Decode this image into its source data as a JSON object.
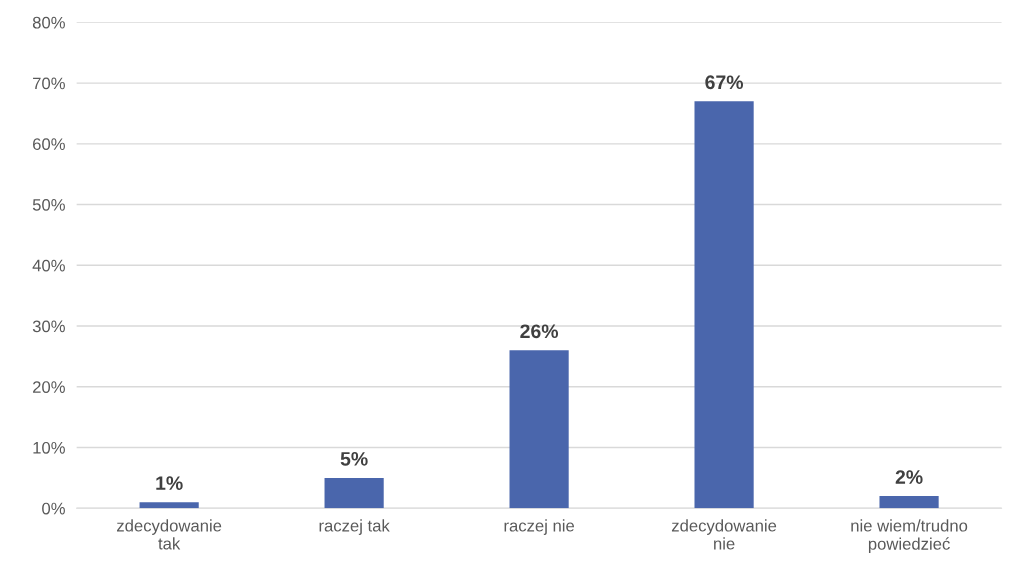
{
  "chart_data": {
    "type": "bar",
    "categories": [
      "zdecydowanie\ntak",
      "raczej tak",
      "raczej nie",
      "zdecydowanie\nnie",
      "nie wiem/trudno\npowiedzieć"
    ],
    "values": [
      1,
      5,
      26,
      67,
      2
    ],
    "value_labels": [
      "1%",
      "5%",
      "26%",
      "67%",
      "2%"
    ],
    "color": "#4a66ac",
    "ylim": [
      0,
      80
    ],
    "yticks": [
      {
        "value": 0,
        "label": "0%"
      },
      {
        "value": 10,
        "label": "10%"
      },
      {
        "value": 20,
        "label": "20%"
      },
      {
        "value": 30,
        "label": "30%"
      },
      {
        "value": 40,
        "label": "40%"
      },
      {
        "value": 50,
        "label": "50%"
      },
      {
        "value": 60,
        "label": "60%"
      },
      {
        "value": 70,
        "label": "70%"
      },
      {
        "value": 80,
        "label": "80%"
      }
    ],
    "grid": "y"
  }
}
